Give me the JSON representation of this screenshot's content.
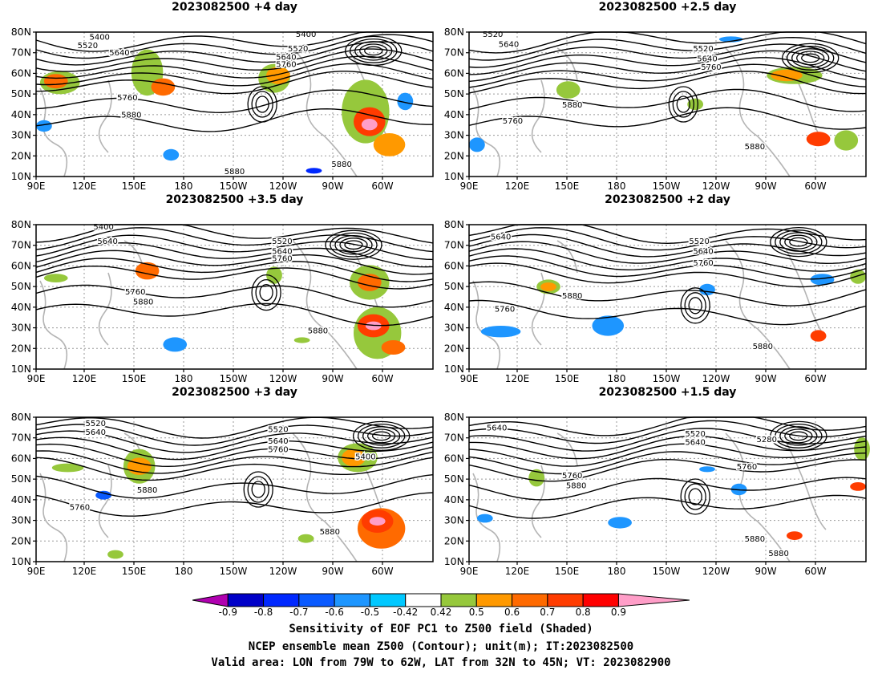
{
  "panels": [
    {
      "title": "2023082500  +4 day"
    },
    {
      "title": "2023082500  +2.5 day"
    },
    {
      "title": "2023082500  +3.5 day"
    },
    {
      "title": "2023082500  +2 day"
    },
    {
      "title": "2023082500  +3 day"
    },
    {
      "title": "2023082500  +1.5 day"
    }
  ],
  "axes": {
    "lat_labels": [
      "80N",
      "70N",
      "60N",
      "50N",
      "40N",
      "30N",
      "20N",
      "10N"
    ],
    "lon_labels": [
      "90E",
      "120E",
      "150E",
      "180",
      "150W",
      "120W",
      "90W",
      "60W"
    ]
  },
  "contour_labels": {
    "p0": [
      "5400",
      "5520",
      "5640",
      "5400",
      "5640",
      "5760",
      "5520",
      "5760",
      "5880",
      "5880",
      "5880"
    ],
    "p1": [
      "5520",
      "5640",
      "5520",
      "5640",
      "5760",
      "5880",
      "5760",
      "5880"
    ],
    "p2": [
      "5400",
      "5640",
      "5520",
      "5640",
      "5760",
      "5760",
      "5880",
      "5880"
    ],
    "p3": [
      "5640",
      "5520",
      "5640",
      "5760",
      "5880",
      "5760",
      "5880"
    ],
    "p4": [
      "5520",
      "5640",
      "5520",
      "5640",
      "5760",
      "5400",
      "5880",
      "5760",
      "5880"
    ],
    "p5": [
      "5640",
      "5520",
      "5640",
      "5280",
      "5760",
      "5760",
      "5880",
      "5880",
      "5880"
    ]
  },
  "colorbar": {
    "labels": [
      "-0.9",
      "-0.8",
      "-0.7",
      "-0.6",
      "-0.5",
      "-0.42",
      "0.42",
      "0.5",
      "0.6",
      "0.7",
      "0.8",
      "0.9"
    ],
    "colors": [
      "#b000b0",
      "#0000c8",
      "#0028ff",
      "#0a5aff",
      "#1e96ff",
      "#00c8ff",
      "#ffffff",
      "#96c83c",
      "#ff9900",
      "#ff6a00",
      "#ff3c00",
      "#ff0000",
      "#ff9ec8"
    ]
  },
  "caption": {
    "line1": "Sensitivity of EOF PC1 to Z500 field (Shaded)",
    "line2": "NCEP ensemble mean Z500 (Contour); unit(m); IT:2023082500",
    "line3": "Valid area: LON from 79W to 62W, LAT from 32N to 45N; VT: 2023082900"
  }
}
